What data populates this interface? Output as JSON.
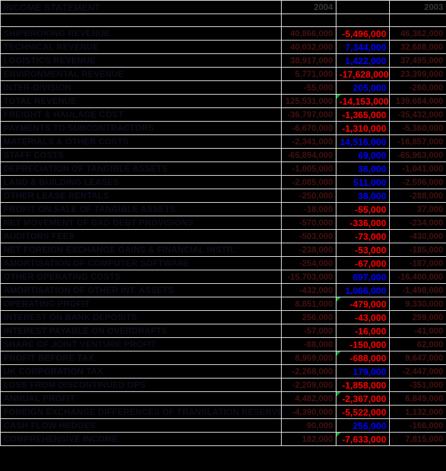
{
  "title": "INCOME STATEMENT",
  "columns": {
    "label_header": "",
    "year_current": "2004",
    "change_header": "",
    "year_prior": "2003"
  },
  "colors": {
    "background": "#000000",
    "gridline": "#e2e2e2",
    "label_text": "#0d0d1c",
    "value_text_dark_red": "#441010",
    "year_text": "#363636",
    "change_positive": "#0000ff",
    "change_negative": "#ff0000",
    "flag_green": "#00a82d"
  },
  "flag_icon_meaning": "green-corner-flag-icon",
  "rows": [
    {
      "label": "SHIPBROKING REVENUE",
      "y2004": "40,866,000",
      "change": "-5,496,000",
      "y2003": "46,362,000",
      "flag": false
    },
    {
      "label": "TECHNICAL REVENUE",
      "y2004": "40,032,000",
      "change": "7,344,000",
      "y2003": "32,688,000",
      "flag": false
    },
    {
      "label": "LOGISTICS REVENUE",
      "y2004": "38,917,000",
      "change": "1,422,000",
      "y2003": "37,495,000",
      "flag": false
    },
    {
      "label": "ENVIRONMENTAL REVENUE",
      "y2004": "5,771,000",
      "change": "-17,628,000",
      "y2003": "23,399,000",
      "flag": false
    },
    {
      "label": "INTER-DIVISION",
      "y2004": "-55,000",
      "change": "205,000",
      "y2003": "-260,000",
      "flag": false
    },
    {
      "label": "TOTAL REVENUE",
      "y2004": "125,531,000",
      "change": "-14,153,000",
      "y2003": "139,684,000",
      "flag": true
    },
    {
      "label": "FREIGHT & HAULAGE COST",
      "y2004": "-36,797,000",
      "change": "-1,365,000",
      "y2003": "-35,432,000",
      "flag": false
    },
    {
      "label": "PAYMENTS TO SUBCONTRACTORS",
      "y2004": "-6,670,000",
      "change": "-1,310,000",
      "y2003": "-5,360,000",
      "flag": false
    },
    {
      "label": "MATERIALS & OTHER COSTS",
      "y2004": "-2,341,000",
      "change": "14,516,000",
      "y2003": "-16,857,000",
      "flag": false
    },
    {
      "label": "STAFF COSTS",
      "y2004": "-65,894,000",
      "change": "69,000",
      "y2003": "-65,963,000",
      "flag": false
    },
    {
      "label": "DEPRECIATION OF TANGIBLE ASSETS",
      "y2004": "-1,005,000",
      "change": "36,000",
      "y2003": "-1,041,000",
      "flag": false
    },
    {
      "label": "LAND & BUILDING LEASES",
      "y2004": "-2,085,000",
      "change": "511,000",
      "y2003": "-2,596,000",
      "flag": false
    },
    {
      "label": "OTHER LEASE RENTALS",
      "y2004": "-250,000",
      "change": "38,000",
      "y2003": "-288,000",
      "flag": false
    },
    {
      "label": "PROFIT ON SALE OF TANGIBLE ASSETS",
      "y2004": "-18,000",
      "change": "-55,000",
      "y2003": "37,000",
      "flag": false
    },
    {
      "label": "NET MOVEMENT OF BAD DEBT PROVISIONS",
      "y2004": "-570,000",
      "change": "-336,000",
      "y2003": "-234,000",
      "flag": false
    },
    {
      "label": "AUDITORS FEES",
      "y2004": "-503,000",
      "change": "-73,000",
      "y2003": "-430,000",
      "flag": false
    },
    {
      "label": "NET FOREIGN EXCHANGE GAINS & FINANCIAL INSTR.",
      "y2004": "-238,000",
      "change": "-53,000",
      "y2003": "-185,000",
      "flag": false
    },
    {
      "label": "AMORTISATION OF COMPUTER SOFTWARE",
      "y2004": "-254,000",
      "change": "-67,000",
      "y2003": "-187,000",
      "flag": false
    },
    {
      "label": "OTHER OPERATING COSTS",
      "y2004": "-15,703,000",
      "change": "697,000",
      "y2003": "-16,400,000",
      "flag": false
    },
    {
      "label": "AMORTISATION OF OTHER INT. ASSETS",
      "y2004": "-432,000",
      "change": "1,066,000",
      "y2003": "-1,498,000",
      "flag": false
    },
    {
      "label": "OPERATING PROFIT",
      "y2004": "8,851,000",
      "change": "-479,000",
      "y2003": "9,330,000",
      "flag": true
    },
    {
      "label": "INTEREST ON BANK DEPOSITS",
      "y2004": "256,000",
      "change": "-43,000",
      "y2003": "299,000",
      "flag": false
    },
    {
      "label": "INTEREST PAYABLE ON OVERDRAFTS",
      "y2004": "-57,000",
      "change": "-16,000",
      "y2003": "-41,000",
      "flag": false
    },
    {
      "label": "SHARE OF JOINT VENTURE PROFIT",
      "y2004": "-88,000",
      "change": "-150,000",
      "y2003": "62,000",
      "flag": false
    },
    {
      "label": "PROFIT BEFORE TAX",
      "y2004": "8,959,000",
      "change": "-688,000",
      "y2003": "9,647,000",
      "flag": true
    },
    {
      "label": "UK CORPORATION TAX",
      "y2004": "-2,268,000",
      "change": "179,000",
      "y2003": "-2,447,000",
      "flag": false
    },
    {
      "label": "LOSS FROM DISCONTINUED OPS",
      "y2004": "-2,209,000",
      "change": "-1,858,000",
      "y2003": "-351,000",
      "flag": false
    },
    {
      "label": "ANNUAL PROFIT",
      "y2004": "4,482,000",
      "change": "-2,367,000",
      "y2003": "6,849,000",
      "flag": true
    },
    {
      "label": "FOREIGN EXCHANGE DIFFERENCES OF TRANSLATION RESERVE",
      "y2004": "-4,390,000",
      "change": "-5,522,000",
      "y2003": "1,132,000",
      "flag": false
    },
    {
      "label": "CASH FLOW HEDGES",
      "y2004": "90,000",
      "change": "256,000",
      "y2003": "-166,000",
      "flag": false
    },
    {
      "label": "COMPREHENSIVE INCOME",
      "y2004": "182,000",
      "change": "-7,633,000",
      "y2003": "7,815,000",
      "flag": true
    }
  ]
}
